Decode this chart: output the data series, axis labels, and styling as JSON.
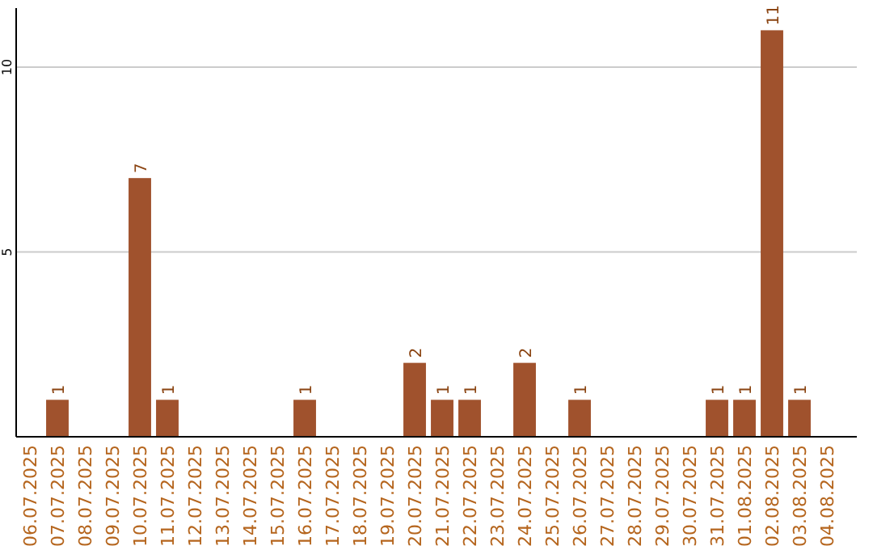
{
  "chart_data": {
    "type": "bar",
    "categories": [
      "06.07.2025",
      "07.07.2025",
      "08.07.2025",
      "09.07.2025",
      "10.07.2025",
      "11.07.2025",
      "12.07.2025",
      "13.07.2025",
      "14.07.2025",
      "15.07.2025",
      "16.07.2025",
      "17.07.2025",
      "18.07.2025",
      "19.07.2025",
      "20.07.2025",
      "21.07.2025",
      "22.07.2025",
      "23.07.2025",
      "24.07.2025",
      "25.07.2025",
      "26.07.2025",
      "27.07.2025",
      "28.07.2025",
      "29.07.2025",
      "30.07.2025",
      "31.07.2025",
      "01.08.2025",
      "02.08.2025",
      "03.08.2025",
      "04.08.2025"
    ],
    "values": [
      0,
      1,
      0,
      0,
      7,
      1,
      0,
      0,
      0,
      0,
      1,
      0,
      0,
      0,
      2,
      1,
      1,
      0,
      2,
      0,
      1,
      0,
      0,
      0,
      0,
      1,
      1,
      11,
      1,
      0
    ],
    "value_labels": [
      null,
      "1",
      null,
      null,
      "7",
      "1",
      null,
      null,
      null,
      null,
      "1",
      null,
      null,
      null,
      "2",
      "1",
      "1",
      null,
      "2",
      null,
      "1",
      null,
      null,
      null,
      null,
      "1",
      "1",
      "11",
      "1",
      null
    ],
    "color": "#a0522d",
    "ylim": [
      0,
      11.6
    ],
    "yticks": [
      5,
      10
    ],
    "grid": "y"
  }
}
